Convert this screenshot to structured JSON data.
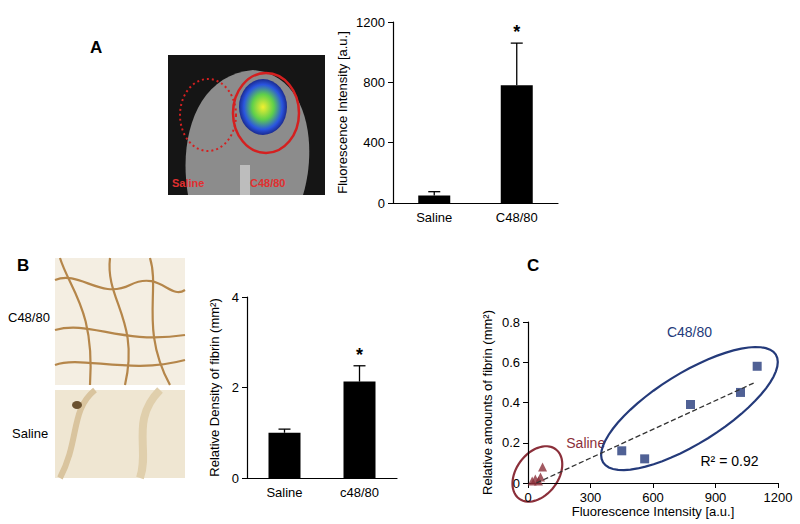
{
  "chart_data": [
    {
      "type": "bar",
      "title": "A",
      "categories": [
        "Saline",
        "C48/80"
      ],
      "values": [
        50,
        780
      ],
      "errors": [
        25,
        280
      ],
      "color": "#000000",
      "y_label": "Fluorescence Intensity [a.u.]",
      "ylim": [
        0,
        1200
      ],
      "yticks": [
        0,
        400,
        800,
        1200
      ],
      "grid": false,
      "annotations": [
        {
          "text": "*",
          "category": "C48/80"
        }
      ]
    },
    {
      "type": "bar",
      "title": "B",
      "categories": [
        "Saline",
        "c48/80"
      ],
      "values": [
        1,
        2.13
      ],
      "errors": [
        0.08,
        0.35
      ],
      "color": "#000000",
      "y_label": "Relative Density of fibrin (mm²)",
      "ylim": [
        0,
        4
      ],
      "yticks": [
        0,
        2,
        4
      ],
      "grid": false,
      "annotations": [
        {
          "text": "*",
          "category": "c48/80"
        }
      ]
    },
    {
      "type": "scatter",
      "title": "C",
      "x_label": "Fluorescence Intensity [a.u.]",
      "y_label": "Relative amounts of fibrin (mm²)",
      "xlim": [
        0,
        1200
      ],
      "xticks": [
        0,
        300,
        600,
        900,
        1200
      ],
      "ylim": [
        0,
        0.8
      ],
      "yticks": [
        0,
        0.2,
        0.4,
        0.6,
        0.8
      ],
      "grid": false,
      "series": [
        {
          "name": "Saline",
          "color": "#8b2f3a",
          "marker": "triangle",
          "x": [
            20,
            35,
            50,
            60,
            70
          ],
          "values": [
            0.01,
            0.02,
            0.01,
            0.03,
            0.08
          ]
        },
        {
          "name": "C48/80",
          "color": "#243a7a",
          "marker": "square",
          "x": [
            450,
            560,
            780,
            1020,
            1100
          ],
          "values": [
            0.16,
            0.12,
            0.39,
            0.45,
            0.58
          ]
        }
      ],
      "trend_line": {
        "x": [
          40,
          1090
        ],
        "y": [
          0,
          0.5
        ],
        "line_style": "dashed",
        "color": "#333333"
      },
      "annotations": [
        {
          "text": "R² = 0.92"
        }
      ]
    }
  ],
  "images": [
    {
      "labels": [
        "Saline",
        "C48/80"
      ]
    },
    {
      "labels": [
        "C48/80",
        "Saline"
      ]
    }
  ]
}
